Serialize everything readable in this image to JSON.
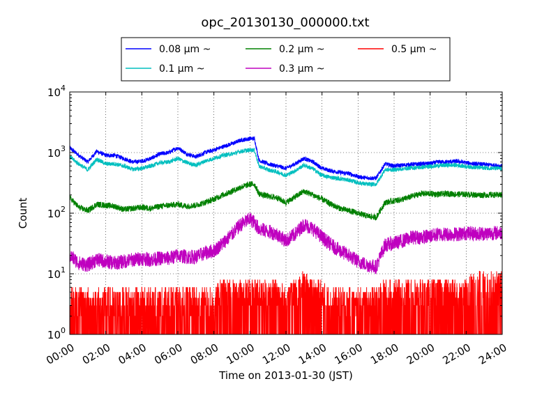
{
  "chart_data": {
    "type": "line",
    "title": "opc_20130130_000000.txt",
    "xlabel": "Time on 2013-01-30 (JST)",
    "ylabel": "Count",
    "yscale": "log",
    "ylim": [
      1,
      10000
    ],
    "xlim": [
      "00:00",
      "24:00"
    ],
    "grid": true,
    "legend": "top-center",
    "x_ticks": [
      "00:00",
      "02:00",
      "04:00",
      "06:00",
      "08:00",
      "10:00",
      "12:00",
      "14:00",
      "16:00",
      "18:00",
      "20:00",
      "22:00",
      "24:00"
    ],
    "y_ticks": [
      {
        "base": "10",
        "exp": "0"
      },
      {
        "base": "10",
        "exp": "1"
      },
      {
        "base": "10",
        "exp": "2"
      },
      {
        "base": "10",
        "exp": "3"
      },
      {
        "base": "10",
        "exp": "4"
      }
    ],
    "x": [
      "00:00",
      "00:30",
      "01:00",
      "01:30",
      "02:00",
      "02:30",
      "03:00",
      "03:30",
      "04:00",
      "04:30",
      "05:00",
      "05:30",
      "06:00",
      "06:30",
      "07:00",
      "07:30",
      "08:00",
      "08:30",
      "09:00",
      "09:30",
      "10:00",
      "10:15",
      "10:30",
      "11:00",
      "11:30",
      "12:00",
      "12:30",
      "13:00",
      "13:30",
      "14:00",
      "14:30",
      "15:00",
      "15:30",
      "16:00",
      "16:30",
      "17:00",
      "17:30",
      "18:00",
      "18:30",
      "19:00",
      "19:30",
      "20:00",
      "20:30",
      "21:00",
      "21:30",
      "22:00",
      "22:30",
      "23:00",
      "23:30",
      "24:00"
    ],
    "series": [
      {
        "name": "0.08 μm ~",
        "color": "#0000ff",
        "values": [
          1200,
          900,
          700,
          1050,
          900,
          900,
          800,
          700,
          720,
          800,
          950,
          1000,
          1200,
          950,
          850,
          1000,
          1100,
          1250,
          1400,
          1600,
          1700,
          1700,
          750,
          650,
          600,
          550,
          650,
          800,
          700,
          550,
          500,
          470,
          450,
          400,
          380,
          380,
          650,
          600,
          620,
          640,
          650,
          660,
          700,
          700,
          720,
          680,
          650,
          640,
          620,
          600
        ]
      },
      {
        "name": "0.1 μm ~",
        "color": "#00bfbf",
        "values": [
          850,
          650,
          520,
          780,
          650,
          650,
          600,
          530,
          550,
          600,
          680,
          700,
          800,
          680,
          620,
          720,
          800,
          900,
          950,
          1050,
          1100,
          1100,
          600,
          520,
          480,
          420,
          500,
          620,
          540,
          420,
          390,
          370,
          350,
          320,
          300,
          300,
          520,
          520,
          540,
          560,
          570,
          590,
          610,
          620,
          620,
          590,
          570,
          560,
          550,
          540
        ]
      },
      {
        "name": "0.2 μm ~",
        "color": "#008000",
        "values": [
          180,
          125,
          110,
          140,
          135,
          130,
          115,
          120,
          125,
          120,
          130,
          135,
          140,
          130,
          135,
          150,
          170,
          200,
          230,
          270,
          300,
          300,
          210,
          190,
          180,
          150,
          185,
          230,
          200,
          170,
          140,
          120,
          110,
          100,
          90,
          85,
          150,
          160,
          170,
          190,
          210,
          210,
          205,
          210,
          205,
          205,
          200,
          200,
          200,
          200
        ]
      },
      {
        "name": "0.3 μm ~",
        "color": "#bf00bf",
        "values": [
          20,
          15,
          14,
          17,
          16,
          15,
          16,
          17,
          18,
          17,
          18,
          18,
          20,
          19,
          19,
          22,
          24,
          32,
          45,
          65,
          80,
          70,
          55,
          50,
          45,
          35,
          45,
          65,
          55,
          40,
          30,
          24,
          20,
          16,
          14,
          13,
          30,
          32,
          35,
          40,
          40,
          42,
          45,
          45,
          45,
          47,
          46,
          46,
          47,
          48
        ]
      },
      {
        "name": "0.5 μm ~",
        "color": "#ff0000",
        "values": [
          2,
          2,
          2,
          2,
          2,
          2,
          2,
          2,
          2,
          2,
          2,
          2,
          2,
          2,
          2,
          2,
          2,
          3,
          3,
          3,
          3,
          3,
          3,
          3,
          3,
          2,
          3,
          4,
          3,
          3,
          2,
          2,
          2,
          2,
          2,
          2,
          3,
          3,
          3,
          3,
          3,
          3,
          3,
          3,
          3,
          3,
          4,
          4,
          4,
          4
        ]
      }
    ]
  }
}
